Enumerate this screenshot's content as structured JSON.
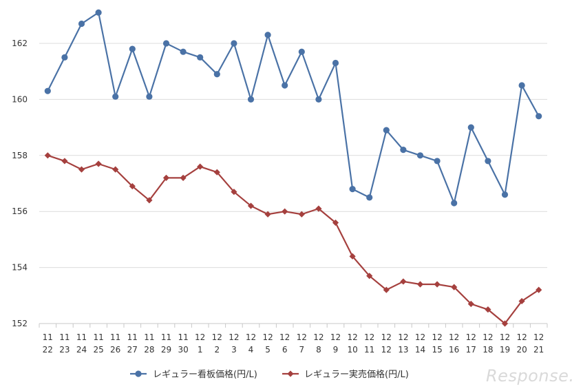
{
  "chart_data": {
    "type": "line",
    "categories": [
      [
        "11",
        "22"
      ],
      [
        "11",
        "23"
      ],
      [
        "11",
        "24"
      ],
      [
        "11",
        "25"
      ],
      [
        "11",
        "26"
      ],
      [
        "11",
        "27"
      ],
      [
        "11",
        "28"
      ],
      [
        "11",
        "29"
      ],
      [
        "11",
        "30"
      ],
      [
        "12",
        "1"
      ],
      [
        "12",
        "2"
      ],
      [
        "12",
        "3"
      ],
      [
        "12",
        "4"
      ],
      [
        "12",
        "5"
      ],
      [
        "12",
        "6"
      ],
      [
        "12",
        "7"
      ],
      [
        "12",
        "8"
      ],
      [
        "12",
        "9"
      ],
      [
        "12",
        "10"
      ],
      [
        "12",
        "11"
      ],
      [
        "12",
        "12"
      ],
      [
        "12",
        "13"
      ],
      [
        "12",
        "14"
      ],
      [
        "12",
        "15"
      ],
      [
        "12",
        "16"
      ],
      [
        "12",
        "17"
      ],
      [
        "12",
        "18"
      ],
      [
        "12",
        "19"
      ],
      [
        "12",
        "20"
      ],
      [
        "12",
        "21"
      ]
    ],
    "series": [
      {
        "name": "レギュラー看板価格(円/L)",
        "color": "#4a72a6",
        "marker": "circle",
        "values": [
          160.3,
          161.5,
          162.7,
          163.1,
          160.1,
          161.8,
          160.1,
          162.0,
          161.7,
          161.5,
          160.9,
          162.0,
          160.0,
          162.3,
          160.5,
          161.7,
          160.0,
          161.3,
          156.8,
          156.5,
          158.9,
          158.2,
          158.0,
          157.8,
          156.3,
          159.0,
          157.8,
          156.6,
          160.5,
          159.4
        ]
      },
      {
        "name": "レギュラー実売価格(円/L)",
        "color": "#a5403e",
        "marker": "diamond",
        "values": [
          158.0,
          157.8,
          157.5,
          157.7,
          157.5,
          156.9,
          156.4,
          157.2,
          157.2,
          157.6,
          157.4,
          156.7,
          156.2,
          155.9,
          156.0,
          155.9,
          156.1,
          155.6,
          154.4,
          153.7,
          153.2,
          153.5,
          153.4,
          153.4,
          153.3,
          152.7,
          152.5,
          152.0,
          152.8,
          153.2
        ]
      }
    ],
    "yticks": [
      152,
      154,
      156,
      158,
      160,
      162
    ],
    "ylim": [
      152,
      163.4
    ],
    "grid": true,
    "legend": "bottom"
  },
  "watermark": "Response."
}
